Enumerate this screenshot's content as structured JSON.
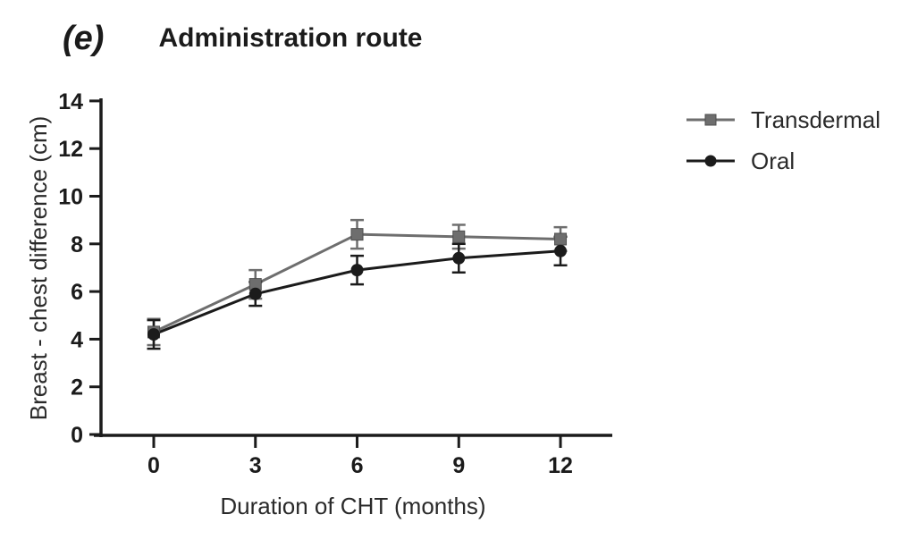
{
  "figure": {
    "panel_label": "(e)"
  },
  "chart_data": {
    "type": "line",
    "title": "Administration route",
    "xlabel": "Duration of CHT (months)",
    "ylabel": "Breast - chest difference (cm)",
    "x": [
      0,
      3,
      6,
      9,
      12
    ],
    "xticks": [
      0,
      3,
      6,
      9,
      12
    ],
    "yticks": [
      0,
      2,
      4,
      6,
      8,
      10,
      12,
      14
    ],
    "xlim": [
      -1.8,
      13.5
    ],
    "ylim": [
      0,
      14
    ],
    "grid": false,
    "legend_position": "right",
    "error_bars": true,
    "series": [
      {
        "name": "Transdermal",
        "marker": "square",
        "color": "#6e6e6e",
        "values": [
          4.3,
          6.3,
          8.4,
          8.3,
          8.2
        ],
        "errors": [
          0.55,
          0.6,
          0.6,
          0.5,
          0.5
        ]
      },
      {
        "name": "Oral",
        "marker": "circle",
        "color": "#1b1b1b",
        "values": [
          4.2,
          5.9,
          6.9,
          7.4,
          7.7
        ],
        "errors": [
          0.6,
          0.5,
          0.6,
          0.6,
          0.6
        ]
      }
    ],
    "axis_color": "#1b1b1b"
  }
}
